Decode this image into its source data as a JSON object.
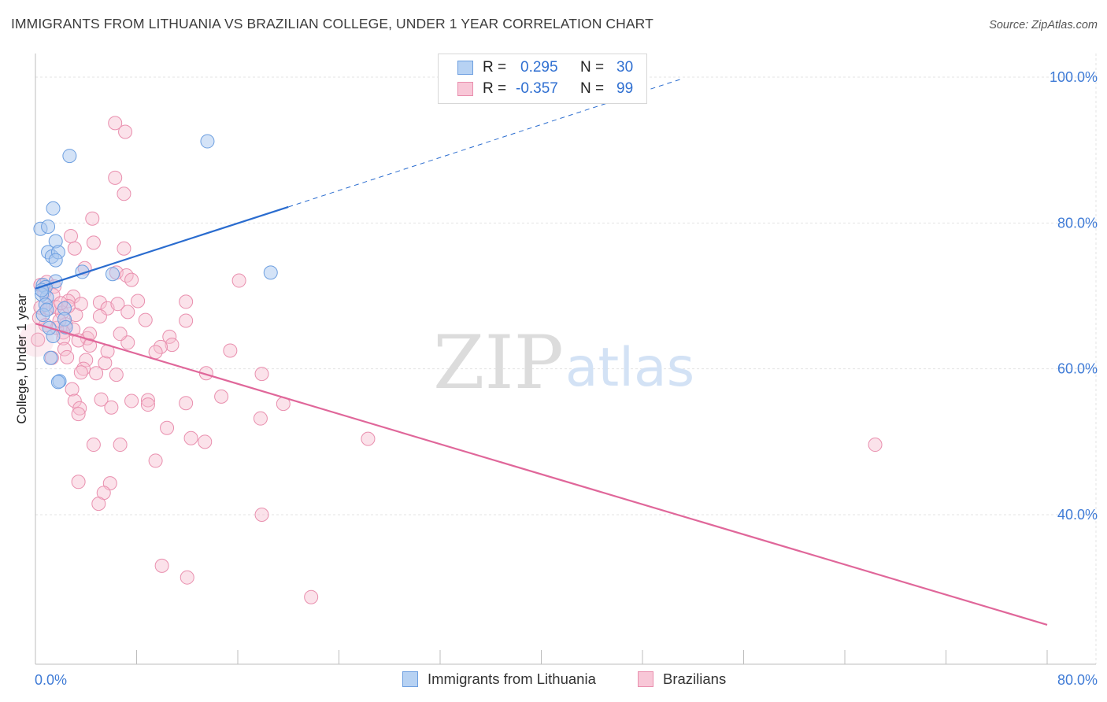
{
  "header": {
    "title": "IMMIGRANTS FROM LITHUANIA VS BRAZILIAN COLLEGE, UNDER 1 YEAR CORRELATION CHART",
    "source": "Source: ZipAtlas.com"
  },
  "legend_top": {
    "rows": [
      {
        "r_label": "R =",
        "r_value": "0.295",
        "n_label": "N =",
        "n_value": "30"
      },
      {
        "r_label": "R =",
        "r_value": "-0.357",
        "n_label": "N =",
        "n_value": "99"
      }
    ]
  },
  "watermark": {
    "part1": "ZIP",
    "part2": "atlas"
  },
  "colors": {
    "blue_fill": "#a9c8f0",
    "blue_stroke": "#6d9fe0",
    "blue_line": "#2a6ccf",
    "pink_fill": "#f6bfd1",
    "pink_stroke": "#e98fae",
    "pink_line": "#e0679a",
    "tick_label": "#3f7bd6",
    "grid": "#e3e3e3"
  },
  "chart_data": {
    "type": "scatter",
    "title": "IMMIGRANTS FROM LITHUANIA VS BRAZILIAN COLLEGE, UNDER 1 YEAR CORRELATION CHART",
    "ylabel": "College, Under 1 year",
    "xlabel": "",
    "xlim": [
      0,
      80
    ],
    "ylim": [
      18,
      102
    ],
    "x_ticks_labeled": [
      {
        "value": 0,
        "label": "0.0%"
      },
      {
        "value": 80,
        "label": "80.0%"
      }
    ],
    "x_minor_ticks": [
      0,
      8,
      16,
      24,
      32,
      40,
      48,
      56,
      64,
      72,
      80
    ],
    "y_ticks": [
      {
        "value": 40,
        "label": "40.0%"
      },
      {
        "value": 60,
        "label": "60.0%"
      },
      {
        "value": 80,
        "label": "80.0%"
      },
      {
        "value": 100,
        "label": "100.0%"
      }
    ],
    "grid": true,
    "legend": "bottom-center",
    "series": [
      {
        "name": "Immigrants from Lithuania",
        "r": 0.295,
        "n": 30,
        "trend": {
          "x0": 0,
          "y0": 71.0,
          "x1": 20.0,
          "y1": 82.2,
          "dashed_to_x": 51.0,
          "dashed_to_y": 99.7
        },
        "points": [
          [
            0.4,
            79.2
          ],
          [
            1.0,
            79.5
          ],
          [
            1.4,
            82.0
          ],
          [
            2.7,
            89.2
          ],
          [
            1.0,
            76.0
          ],
          [
            1.3,
            75.4
          ],
          [
            1.6,
            77.5
          ],
          [
            1.8,
            76.0
          ],
          [
            1.6,
            74.9
          ],
          [
            3.7,
            73.3
          ],
          [
            6.1,
            73.0
          ],
          [
            0.6,
            71.5
          ],
          [
            1.6,
            72.0
          ],
          [
            0.8,
            71.2
          ],
          [
            0.9,
            69.8
          ],
          [
            0.5,
            70.2
          ],
          [
            0.8,
            68.8
          ],
          [
            2.3,
            68.3
          ],
          [
            0.6,
            67.4
          ],
          [
            2.3,
            66.8
          ],
          [
            2.4,
            65.7
          ],
          [
            1.4,
            64.5
          ],
          [
            1.2,
            61.5
          ],
          [
            1.9,
            58.3
          ],
          [
            1.8,
            58.2
          ],
          [
            13.6,
            91.2
          ],
          [
            18.6,
            73.2
          ],
          [
            0.5,
            70.8
          ],
          [
            0.9,
            68.1
          ],
          [
            1.1,
            65.6
          ]
        ]
      },
      {
        "name": "Brazilians",
        "r": -0.357,
        "n": 99,
        "trend": {
          "x0": 0,
          "y0": 66.2,
          "x1": 80,
          "y1": 24.9
        },
        "points": [
          [
            6.3,
            93.7
          ],
          [
            7.1,
            92.5
          ],
          [
            6.3,
            86.2
          ],
          [
            7.0,
            84.0
          ],
          [
            4.5,
            80.6
          ],
          [
            2.8,
            78.2
          ],
          [
            4.6,
            77.3
          ],
          [
            3.1,
            76.5
          ],
          [
            7.0,
            76.5
          ],
          [
            3.9,
            73.8
          ],
          [
            6.4,
            73.2
          ],
          [
            7.2,
            72.8
          ],
          [
            7.6,
            72.2
          ],
          [
            16.1,
            72.1
          ],
          [
            0.4,
            71.5
          ],
          [
            0.9,
            71.9
          ],
          [
            1.5,
            71.3
          ],
          [
            0.7,
            70.5
          ],
          [
            1.4,
            70.1
          ],
          [
            3.0,
            69.9
          ],
          [
            2.6,
            69.3
          ],
          [
            5.1,
            69.1
          ],
          [
            5.7,
            68.3
          ],
          [
            8.1,
            69.3
          ],
          [
            11.9,
            69.2
          ],
          [
            6.5,
            68.9
          ],
          [
            3.6,
            68.9
          ],
          [
            0.4,
            68.4
          ],
          [
            1.1,
            68.3
          ],
          [
            1.6,
            68.5
          ],
          [
            2.1,
            67.7
          ],
          [
            7.3,
            67.8
          ],
          [
            3.2,
            67.4
          ],
          [
            5.1,
            67.2
          ],
          [
            8.7,
            66.7
          ],
          [
            11.9,
            66.6
          ],
          [
            2.4,
            66.1
          ],
          [
            1.7,
            65.6
          ],
          [
            3.0,
            65.4
          ],
          [
            2.2,
            65.0
          ],
          [
            10.6,
            64.4
          ],
          [
            4.1,
            64.2
          ],
          [
            4.3,
            64.8
          ],
          [
            2.2,
            64.2
          ],
          [
            3.4,
            63.9
          ],
          [
            7.3,
            63.6
          ],
          [
            10.8,
            63.3
          ],
          [
            9.9,
            63.0
          ],
          [
            9.5,
            62.3
          ],
          [
            15.4,
            62.5
          ],
          [
            2.3,
            62.7
          ],
          [
            1.3,
            61.5
          ],
          [
            2.5,
            61.6
          ],
          [
            4.0,
            61.2
          ],
          [
            5.5,
            60.8
          ],
          [
            3.8,
            60.0
          ],
          [
            3.6,
            59.5
          ],
          [
            4.8,
            59.4
          ],
          [
            6.4,
            59.2
          ],
          [
            13.5,
            59.4
          ],
          [
            17.9,
            59.3
          ],
          [
            2.9,
            57.2
          ],
          [
            14.7,
            56.2
          ],
          [
            3.1,
            55.6
          ],
          [
            5.2,
            55.8
          ],
          [
            7.6,
            55.6
          ],
          [
            8.9,
            55.7
          ],
          [
            8.9,
            55.1
          ],
          [
            11.9,
            55.3
          ],
          [
            19.6,
            55.2
          ],
          [
            3.5,
            54.6
          ],
          [
            6.0,
            54.7
          ],
          [
            3.4,
            53.8
          ],
          [
            17.8,
            53.2
          ],
          [
            10.4,
            51.9
          ],
          [
            12.3,
            50.5
          ],
          [
            13.4,
            50.0
          ],
          [
            26.3,
            50.4
          ],
          [
            66.4,
            49.6
          ],
          [
            4.6,
            49.6
          ],
          [
            6.7,
            49.6
          ],
          [
            9.5,
            47.4
          ],
          [
            3.4,
            44.5
          ],
          [
            5.9,
            44.3
          ],
          [
            5.4,
            43.0
          ],
          [
            5.0,
            41.5
          ],
          [
            17.9,
            40.0
          ],
          [
            10.0,
            33.0
          ],
          [
            12.0,
            31.4
          ],
          [
            21.8,
            28.7
          ],
          [
            0.2,
            64.0
          ],
          [
            0.3,
            67.0
          ],
          [
            0.8,
            66.0
          ],
          [
            1.9,
            66.6
          ],
          [
            2.6,
            68.6
          ],
          [
            4.3,
            63.2
          ],
          [
            5.7,
            62.4
          ],
          [
            6.7,
            64.8
          ],
          [
            2.0,
            69.0
          ]
        ]
      }
    ]
  },
  "bottom_legend": {
    "items": [
      {
        "label": "Immigrants from Lithuania"
      },
      {
        "label": "Brazilians"
      }
    ]
  }
}
